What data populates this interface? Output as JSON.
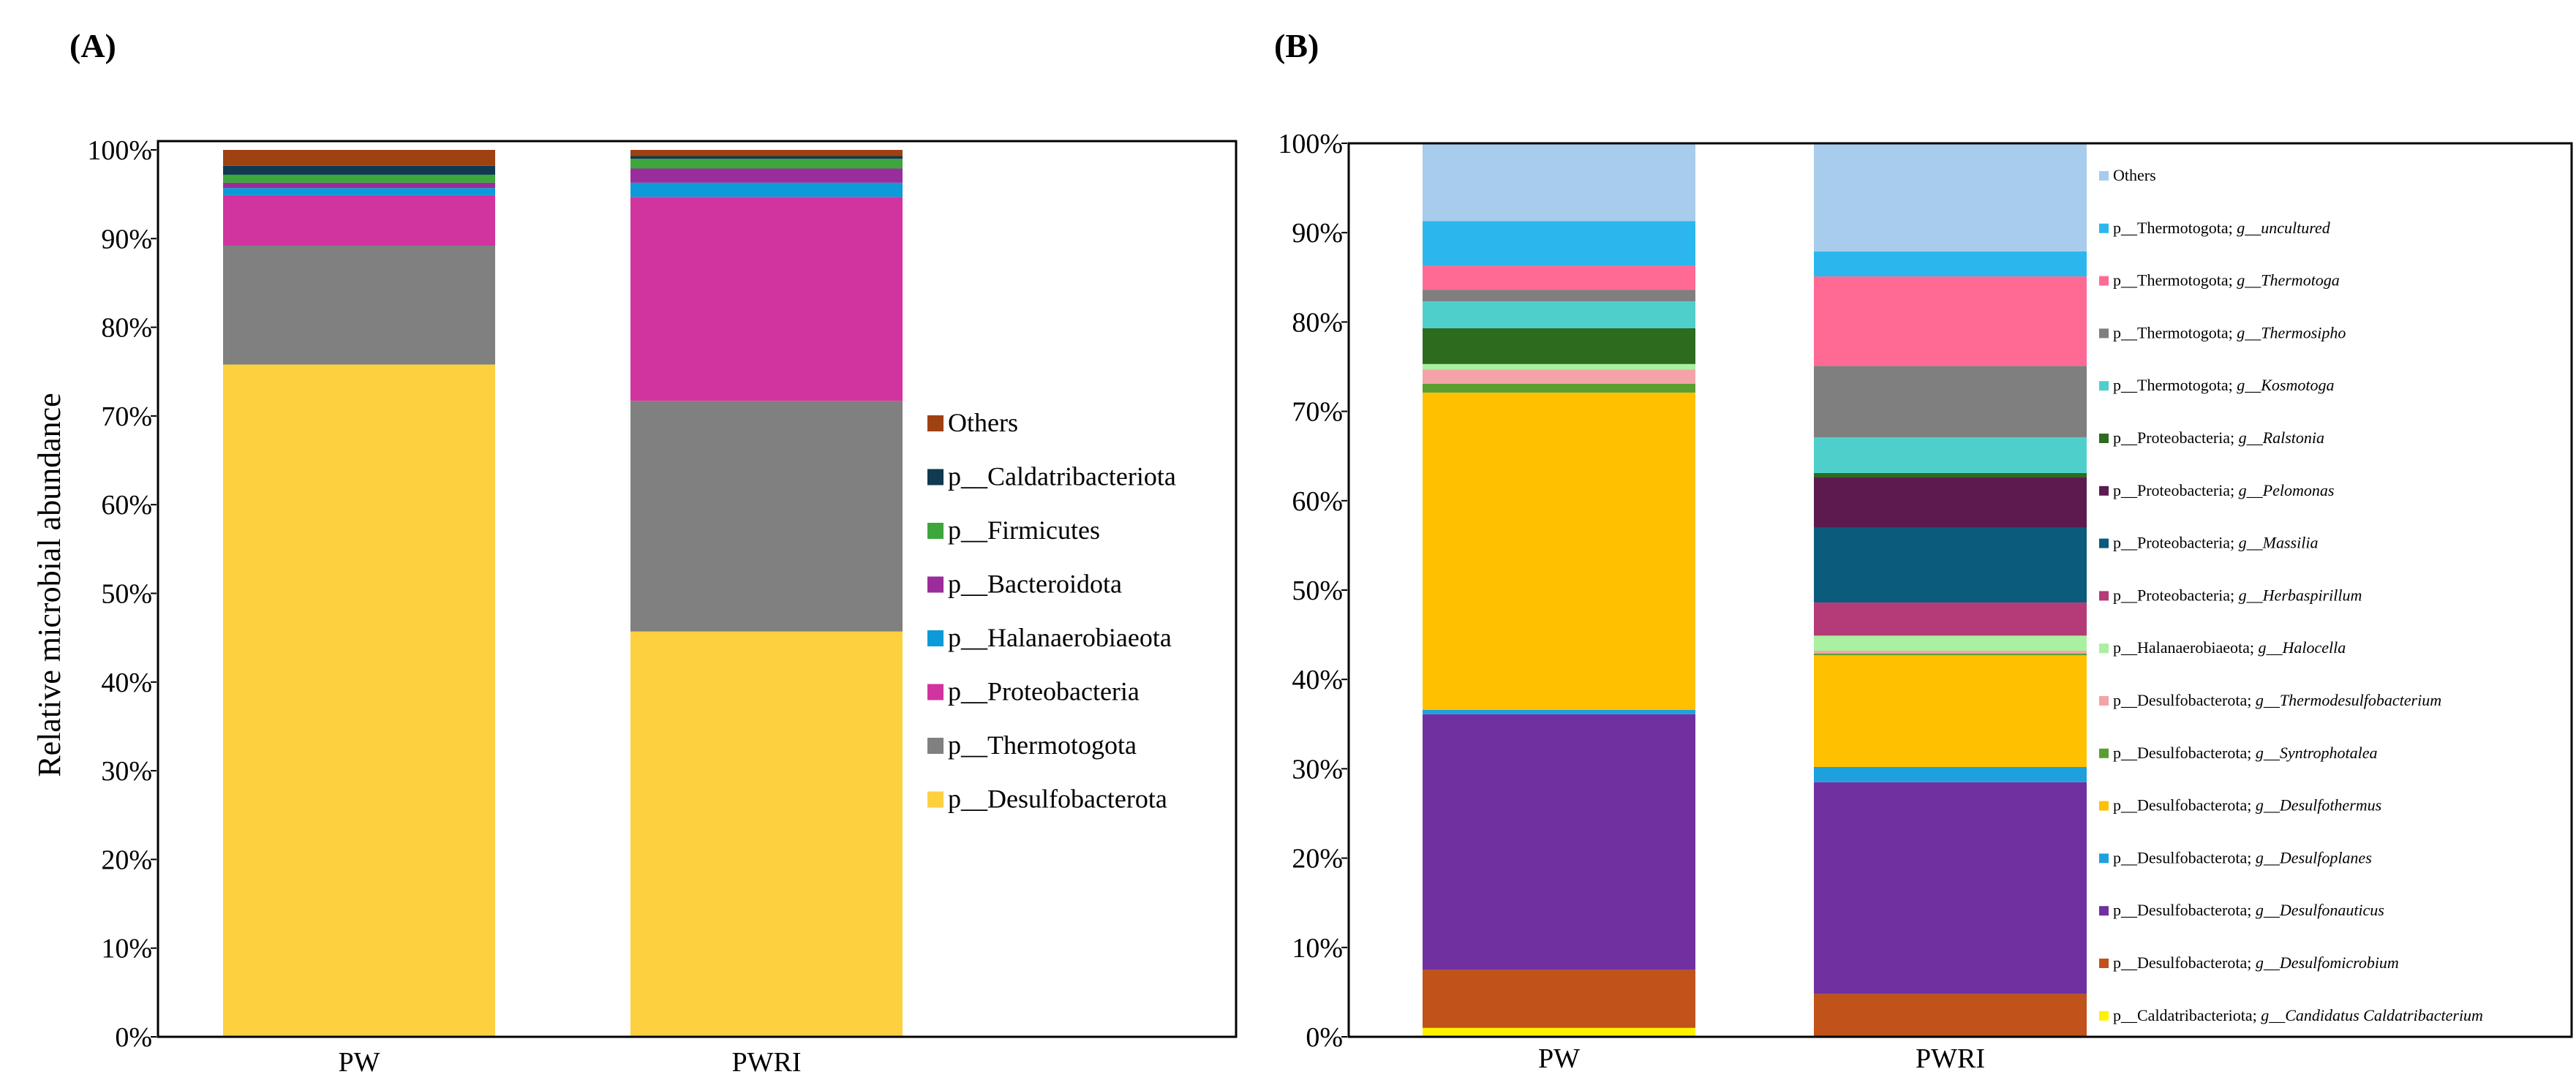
{
  "chart_data": [
    {
      "panel_label": "(A)",
      "type": "bar",
      "stacked": true,
      "ylabel": "Relative  microbial abundance",
      "categories": [
        "PW",
        "PWRI"
      ],
      "y_ticks": [
        "0%",
        "10%",
        "20%",
        "30%",
        "40%",
        "50%",
        "60%",
        "70%",
        "80%",
        "90%",
        "100%"
      ],
      "ylim": [
        0,
        100
      ],
      "legend_position": "right",
      "series": [
        {
          "name": "p__Desulfobacterota",
          "values": [
            75.8,
            45.7
          ],
          "color": "#FDD03F"
        },
        {
          "name": "p__Thermotogota",
          "values": [
            13.4,
            26.0
          ],
          "color": "#808080"
        },
        {
          "name": "p__Proteobacteria",
          "values": [
            5.7,
            23.0
          ],
          "color": "#D1349F"
        },
        {
          "name": "p__Halanaerobiaeota",
          "values": [
            0.8,
            1.6
          ],
          "color": "#0C9AD8"
        },
        {
          "name": "p__Bacteroidota",
          "values": [
            0.6,
            1.6
          ],
          "color": "#9B2C9B"
        },
        {
          "name": "p__Firmicutes",
          "values": [
            0.9,
            1.1
          ],
          "color": "#3DA63D"
        },
        {
          "name": "p__Caldatribacteriota",
          "values": [
            1.0,
            0.3
          ],
          "color": "#0F3A4F"
        },
        {
          "name": "Others",
          "values": [
            1.8,
            0.7
          ],
          "color": "#9E4211"
        }
      ]
    },
    {
      "panel_label": "(B)",
      "type": "bar",
      "stacked": true,
      "categories": [
        "PW",
        "PWRI"
      ],
      "y_ticks": [
        "0%",
        "10%",
        "20%",
        "30%",
        "40%",
        "50%",
        "60%",
        "70%",
        "80%",
        "90%",
        "100%"
      ],
      "ylim": [
        0,
        100
      ],
      "legend_position": "right",
      "series": [
        {
          "name": "p__Caldatribacteriota; ",
          "genus": "g__Candidatus Caldatribacterium",
          "values": [
            1.0,
            0.0
          ],
          "color": "#FFF200"
        },
        {
          "name": "p__Desulfobacterota; ",
          "genus": "g__Desulfomicrobium",
          "values": [
            6.5,
            4.8
          ],
          "color": "#C0521A"
        },
        {
          "name": "p__Desulfobacterota; ",
          "genus": "g__Desulfonauticus",
          "values": [
            28.6,
            23.7
          ],
          "color": "#7030A0"
        },
        {
          "name": "p__Desulfobacterota; ",
          "genus": "g__Desulfoplanes",
          "values": [
            0.5,
            1.7
          ],
          "color": "#1EA0DD"
        },
        {
          "name": "p__Desulfobacterota; ",
          "genus": "g__Desulfothermus",
          "values": [
            35.5,
            12.5
          ],
          "color": "#FFC000"
        },
        {
          "name": "p__Desulfobacterota; ",
          "genus": "g__Syntrophotalea",
          "values": [
            1.0,
            0.2
          ],
          "color": "#5A9E32"
        },
        {
          "name": "p__Desulfobacterota; ",
          "genus": "g__Thermodesulfobacterium",
          "values": [
            1.6,
            0.3
          ],
          "color": "#F4A3A8"
        },
        {
          "name": "p__Halanaerobiaeota; ",
          "genus": "g__Halocella",
          "values": [
            0.6,
            1.7
          ],
          "color": "#A9F0A0"
        },
        {
          "name": "p__Proteobacteria; ",
          "genus": "g__Herbaspirillum",
          "values": [
            0.0,
            3.7
          ],
          "color": "#B53A78"
        },
        {
          "name": "p__Proteobacteria; ",
          "genus": "g__Massilia",
          "values": [
            0.0,
            8.4
          ],
          "color": "#0B5B7C"
        },
        {
          "name": "p__Proteobacteria; ",
          "genus": "g__Pelomonas",
          "values": [
            0.0,
            5.6
          ],
          "color": "#5C1A4F"
        },
        {
          "name": "p__Proteobacteria; ",
          "genus": "g__Ralstonia",
          "values": [
            4.0,
            0.5
          ],
          "color": "#2D6B1F"
        },
        {
          "name": "p__Thermotogota; ",
          "genus": "g__Kosmotoga",
          "values": [
            3.0,
            4.0
          ],
          "color": "#4FCFCB"
        },
        {
          "name": "p__Thermotogota; ",
          "genus": "g__Thermosipho",
          "values": [
            1.3,
            8.0
          ],
          "color": "#7F7F7F"
        },
        {
          "name": "p__Thermotogota; ",
          "genus": "g__Thermotoga",
          "values": [
            2.7,
            10.0
          ],
          "color": "#FF6A95"
        },
        {
          "name": "p__Thermotogota; ",
          "genus": "g__uncultured",
          "values": [
            5.0,
            2.8
          ],
          "color": "#2BB7EE"
        },
        {
          "name": "Others",
          "genus": "",
          "values": [
            8.7,
            12.1
          ],
          "color": "#A8CCEB"
        }
      ]
    }
  ]
}
